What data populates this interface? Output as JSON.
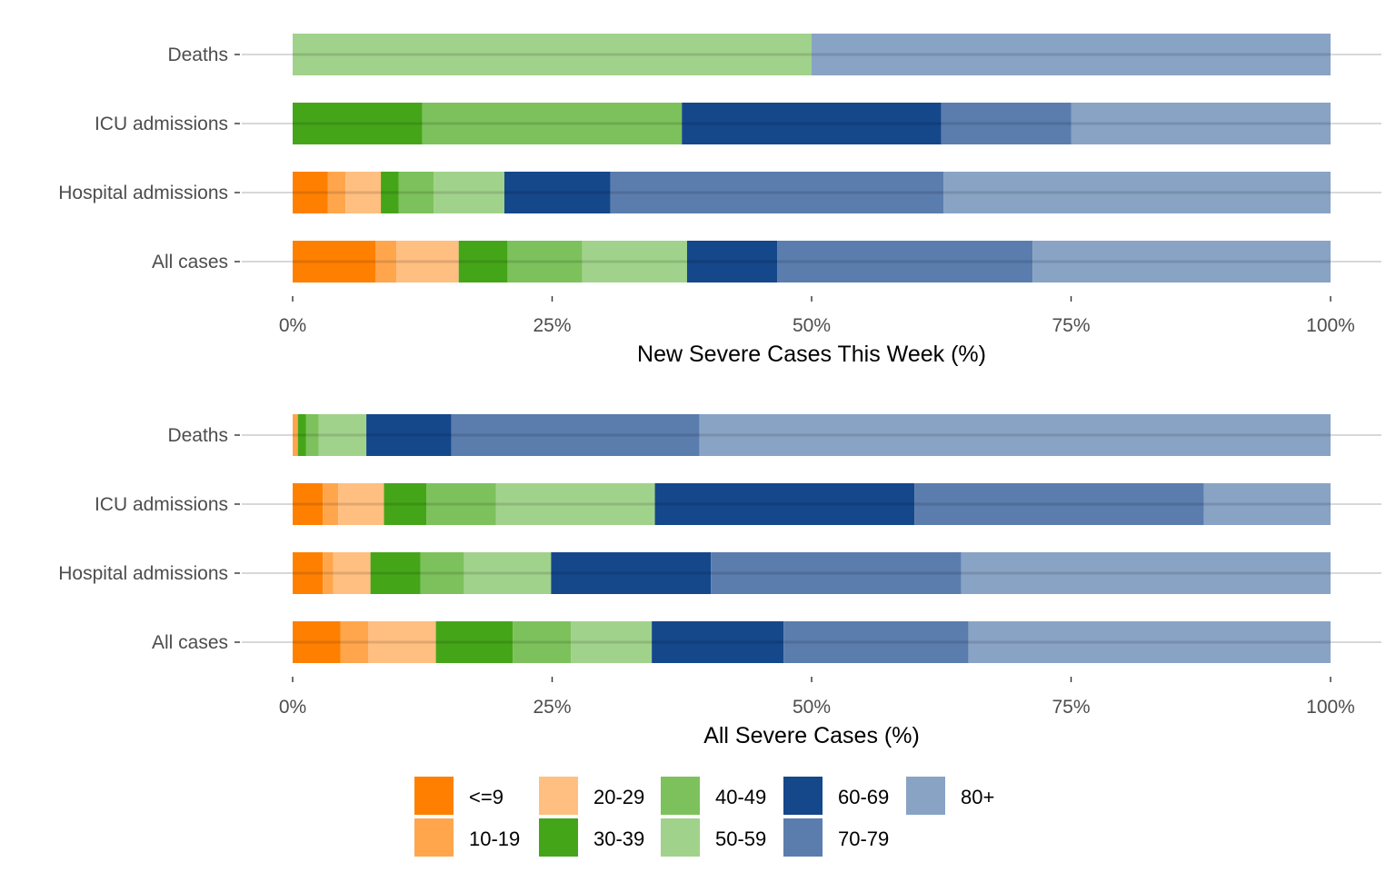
{
  "chart_data": [
    {
      "type": "bar",
      "orientation": "horizontal",
      "stacked": true,
      "title": "",
      "xlabel": "New Severe Cases This Week (%)",
      "ylabel": "",
      "xlim": [
        0,
        100
      ],
      "x_ticks": [
        "0%",
        "25%",
        "50%",
        "75%",
        "100%"
      ],
      "categories": [
        "Deaths",
        "ICU admissions",
        "Hospital admissions",
        "All cases"
      ],
      "series": [
        {
          "name": "<=9",
          "values": [
            0,
            0,
            3.4,
            8.0
          ]
        },
        {
          "name": "10-19",
          "values": [
            0,
            0,
            1.7,
            2.0
          ]
        },
        {
          "name": "20-29",
          "values": [
            0,
            0,
            3.4,
            6.0
          ]
        },
        {
          "name": "30-39",
          "values": [
            0,
            12.5,
            1.7,
            4.7
          ]
        },
        {
          "name": "40-49",
          "values": [
            0,
            25.0,
            3.4,
            7.2
          ]
        },
        {
          "name": "50-59",
          "values": [
            50.0,
            0,
            6.8,
            10.1
          ]
        },
        {
          "name": "60-69",
          "values": [
            0,
            25.0,
            10.2,
            8.7
          ]
        },
        {
          "name": "70-79",
          "values": [
            0,
            12.5,
            32.1,
            24.6
          ]
        },
        {
          "name": "80+",
          "values": [
            50.0,
            25.0,
            37.3,
            28.7
          ]
        }
      ],
      "grid": true
    },
    {
      "type": "bar",
      "orientation": "horizontal",
      "stacked": true,
      "title": "",
      "xlabel": "All Severe Cases (%)",
      "ylabel": "",
      "xlim": [
        0,
        100
      ],
      "x_ticks": [
        "0%",
        "25%",
        "50%",
        "75%",
        "100%"
      ],
      "categories": [
        "Deaths",
        "ICU admissions",
        "Hospital admissions",
        "All cases"
      ],
      "series": [
        {
          "name": "<=9",
          "values": [
            0,
            2.9,
            2.9,
            4.6
          ]
        },
        {
          "name": "10-19",
          "values": [
            0.5,
            1.5,
            1.0,
            2.7
          ]
        },
        {
          "name": "20-29",
          "values": [
            0,
            4.4,
            3.6,
            6.5
          ]
        },
        {
          "name": "30-39",
          "values": [
            0.8,
            4.1,
            4.8,
            7.4
          ]
        },
        {
          "name": "40-49",
          "values": [
            1.2,
            6.7,
            4.2,
            5.6
          ]
        },
        {
          "name": "50-59",
          "values": [
            4.6,
            15.3,
            8.4,
            7.8
          ]
        },
        {
          "name": "60-69",
          "values": [
            8.2,
            25.0,
            15.4,
            12.7
          ]
        },
        {
          "name": "70-79",
          "values": [
            23.9,
            27.9,
            24.1,
            17.8
          ]
        },
        {
          "name": "80+",
          "values": [
            60.8,
            12.2,
            35.6,
            34.9
          ]
        }
      ],
      "grid": true
    }
  ],
  "legend": {
    "placement": "bottom",
    "items": [
      {
        "label": "<=9",
        "color": "#FF8000"
      },
      {
        "label": "10-19",
        "color": "#FFA64D"
      },
      {
        "label": "20-29",
        "color": "#FFBF80"
      },
      {
        "label": "30-39",
        "color": "#45A519"
      },
      {
        "label": "40-49",
        "color": "#7DC15C"
      },
      {
        "label": "50-59",
        "color": "#A1D28B"
      },
      {
        "label": "60-69",
        "color": "#15478B"
      },
      {
        "label": "70-79",
        "color": "#5A7DAE"
      },
      {
        "label": "80+",
        "color": "#89A3C5"
      }
    ]
  }
}
